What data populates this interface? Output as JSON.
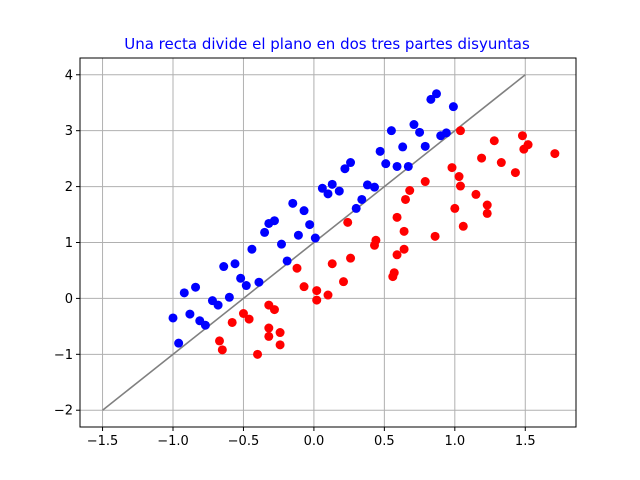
{
  "chart_data": {
    "type": "scatter",
    "title": "Una recta divide el plano en dos tres partes disyuntas",
    "title_color": "#0000ff",
    "xlabel": "",
    "ylabel": "",
    "xlim": [
      -1.66,
      1.86
    ],
    "ylim": [
      -2.3,
      4.3
    ],
    "xticks": [
      -1.5,
      -1.0,
      -0.5,
      0.0,
      0.5,
      1.0,
      1.5
    ],
    "xtick_labels": [
      "−1.5",
      "−1.0",
      "−0.5",
      "0.0",
      "0.5",
      "1.0",
      "1.5"
    ],
    "yticks": [
      -2,
      -1,
      0,
      1,
      2,
      3,
      4
    ],
    "ytick_labels": [
      "−2",
      "−1",
      "0",
      "1",
      "2",
      "3",
      "4"
    ],
    "grid": true,
    "grid_color": "#b0b0b0",
    "line": {
      "x": [
        -1.5,
        1.5
      ],
      "y": [
        -2,
        4
      ],
      "color": "#808080"
    },
    "series": [
      {
        "color": "#0000ff",
        "points": [
          [
            -1.0,
            -0.35
          ],
          [
            -0.96,
            -0.8
          ],
          [
            -0.92,
            0.1
          ],
          [
            -0.88,
            -0.28
          ],
          [
            -0.84,
            0.2
          ],
          [
            -0.81,
            -0.4
          ],
          [
            -0.77,
            -0.48
          ],
          [
            -0.72,
            -0.04
          ],
          [
            -0.68,
            -0.12
          ],
          [
            -0.64,
            0.57
          ],
          [
            -0.6,
            0.02
          ],
          [
            -0.56,
            0.62
          ],
          [
            -0.52,
            0.36
          ],
          [
            -0.48,
            0.23
          ],
          [
            -0.44,
            0.88
          ],
          [
            -0.39,
            0.29
          ],
          [
            -0.35,
            1.18
          ],
          [
            -0.32,
            1.34
          ],
          [
            -0.28,
            1.39
          ],
          [
            -0.23,
            0.97
          ],
          [
            -0.19,
            0.67
          ],
          [
            -0.15,
            1.7
          ],
          [
            -0.11,
            1.13
          ],
          [
            -0.07,
            1.57
          ],
          [
            -0.03,
            1.32
          ],
          [
            0.01,
            1.08
          ],
          [
            0.06,
            1.97
          ],
          [
            0.1,
            1.87
          ],
          [
            0.13,
            2.04
          ],
          [
            0.18,
            1.92
          ],
          [
            0.22,
            2.32
          ],
          [
            0.26,
            2.43
          ],
          [
            0.3,
            1.61
          ],
          [
            0.34,
            1.77
          ],
          [
            0.38,
            2.03
          ],
          [
            0.43,
            1.99
          ],
          [
            0.47,
            2.63
          ],
          [
            0.51,
            2.41
          ],
          [
            0.55,
            3.0
          ],
          [
            0.59,
            2.36
          ],
          [
            0.63,
            2.71
          ],
          [
            0.67,
            2.36
          ],
          [
            0.71,
            3.11
          ],
          [
            0.75,
            2.97
          ],
          [
            0.79,
            2.72
          ],
          [
            0.83,
            3.56
          ],
          [
            0.87,
            3.66
          ],
          [
            0.9,
            2.91
          ],
          [
            0.94,
            2.96
          ],
          [
            0.99,
            3.43
          ]
        ]
      },
      {
        "color": "#ff0000",
        "points": [
          [
            -0.67,
            -0.76
          ],
          [
            -0.65,
            -0.92
          ],
          [
            -0.58,
            -0.43
          ],
          [
            -0.5,
            -0.27
          ],
          [
            -0.46,
            -0.37
          ],
          [
            -0.4,
            -1.0
          ],
          [
            -0.32,
            -0.12
          ],
          [
            -0.32,
            -0.53
          ],
          [
            -0.32,
            -0.68
          ],
          [
            -0.28,
            -0.2
          ],
          [
            -0.24,
            -0.61
          ],
          [
            -0.24,
            -0.83
          ],
          [
            -0.12,
            0.54
          ],
          [
            -0.07,
            0.21
          ],
          [
            0.02,
            0.14
          ],
          [
            0.02,
            -0.03
          ],
          [
            0.1,
            0.06
          ],
          [
            0.13,
            0.62
          ],
          [
            0.21,
            0.3
          ],
          [
            0.24,
            1.36
          ],
          [
            0.26,
            0.72
          ],
          [
            0.43,
            0.95
          ],
          [
            0.44,
            1.04
          ],
          [
            0.56,
            0.39
          ],
          [
            0.57,
            0.46
          ],
          [
            0.59,
            1.45
          ],
          [
            0.59,
            0.78
          ],
          [
            0.64,
            1.2
          ],
          [
            0.64,
            0.88
          ],
          [
            0.65,
            1.77
          ],
          [
            0.68,
            1.93
          ],
          [
            0.79,
            2.09
          ],
          [
            0.86,
            1.11
          ],
          [
            0.98,
            2.34
          ],
          [
            1.0,
            1.61
          ],
          [
            1.03,
            2.18
          ],
          [
            1.04,
            2.01
          ],
          [
            1.04,
            3.0
          ],
          [
            1.06,
            1.29
          ],
          [
            1.15,
            1.86
          ],
          [
            1.19,
            2.51
          ],
          [
            1.23,
            1.52
          ],
          [
            1.23,
            1.67
          ],
          [
            1.28,
            2.82
          ],
          [
            1.33,
            2.43
          ],
          [
            1.43,
            2.25
          ],
          [
            1.48,
            2.91
          ],
          [
            1.49,
            2.67
          ],
          [
            1.52,
            2.75
          ],
          [
            1.71,
            2.59
          ]
        ]
      }
    ]
  }
}
